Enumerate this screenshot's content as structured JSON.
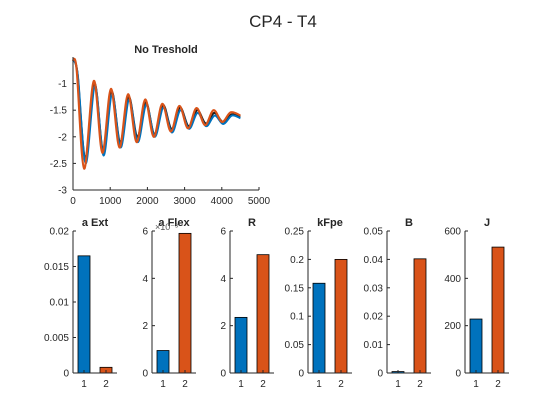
{
  "figure": {
    "title": "CP4 - T4",
    "colors": {
      "black": "#1a1a1a",
      "blue": "#0072bd",
      "orange": "#d95319",
      "axis": "#262626"
    }
  },
  "chart_data": [
    {
      "type": "line",
      "title": "No Treshold",
      "xlim": [
        0,
        5000
      ],
      "ylim": [
        -3,
        -0.5
      ],
      "xticks": [
        0,
        1000,
        2000,
        3000,
        4000,
        5000
      ],
      "yticks": [
        -3,
        -2.5,
        -2,
        -1.5,
        -1
      ],
      "xticklabels": [
        "0",
        "1000",
        "2000",
        "3000",
        "4000",
        "5000"
      ],
      "yticklabels": [
        "-3",
        "-2.5",
        "-2",
        "-1.5",
        "-1"
      ],
      "series": [
        {
          "color": "#1a1a1a",
          "x": [
            0,
            120,
            330,
            580,
            810,
            1040,
            1270,
            1500,
            1730,
            1960,
            2190,
            2420,
            2650,
            2880,
            3110,
            3340,
            3570,
            3800,
            4030,
            4260,
            4500
          ],
          "y": [
            -0.55,
            -0.8,
            -2.4,
            -1.0,
            -2.25,
            -1.15,
            -2.1,
            -1.25,
            -2.0,
            -1.35,
            -1.95,
            -1.4,
            -1.85,
            -1.45,
            -1.8,
            -1.5,
            -1.75,
            -1.55,
            -1.72,
            -1.58,
            -1.62
          ]
        },
        {
          "color": "#0072bd",
          "x": [
            0,
            130,
            340,
            590,
            820,
            1050,
            1280,
            1510,
            1740,
            1970,
            2200,
            2430,
            2660,
            2890,
            3120,
            3350,
            3580,
            3810,
            4040,
            4270,
            4500
          ],
          "y": [
            -0.55,
            -0.85,
            -2.5,
            -1.05,
            -2.35,
            -1.2,
            -2.2,
            -1.3,
            -2.1,
            -1.4,
            -2.0,
            -1.45,
            -1.92,
            -1.5,
            -1.85,
            -1.55,
            -1.8,
            -1.6,
            -1.76,
            -1.6,
            -1.65
          ]
        },
        {
          "color": "#d95319",
          "x": [
            0,
            100,
            300,
            560,
            790,
            1020,
            1250,
            1480,
            1710,
            1940,
            2170,
            2400,
            2630,
            2860,
            3090,
            3320,
            3550,
            3780,
            4010,
            4240,
            4500
          ],
          "y": [
            -0.55,
            -0.75,
            -2.6,
            -0.95,
            -2.3,
            -1.1,
            -2.2,
            -1.2,
            -2.1,
            -1.3,
            -2.0,
            -1.38,
            -1.9,
            -1.42,
            -1.84,
            -1.46,
            -1.78,
            -1.5,
            -1.72,
            -1.54,
            -1.6
          ]
        }
      ]
    },
    {
      "type": "bar",
      "title": "a Ext",
      "categories": [
        "1",
        "2"
      ],
      "values": [
        0.0165,
        0.0008
      ],
      "ylim": [
        0,
        0.02
      ],
      "yticks": [
        0,
        0.005,
        0.01,
        0.015,
        0.02
      ],
      "yticklabels": [
        "0",
        "0.005",
        "0.01",
        "0.015",
        "0.02"
      ],
      "colors": [
        "#0072bd",
        "#d95319"
      ]
    },
    {
      "type": "bar",
      "title": "a Flex",
      "exponent": "×10⁻³",
      "categories": [
        "1",
        "2"
      ],
      "values": [
        0.00095,
        0.0059
      ],
      "ylim": [
        0,
        0.006
      ],
      "yticks": [
        0,
        0.002,
        0.004,
        0.006
      ],
      "yticklabels": [
        "0",
        "2",
        "4",
        "6"
      ],
      "colors": [
        "#0072bd",
        "#d95319"
      ]
    },
    {
      "type": "bar",
      "title": "R",
      "categories": [
        "1",
        "2"
      ],
      "values": [
        2.35,
        5.0
      ],
      "ylim": [
        0,
        6
      ],
      "yticks": [
        0,
        2,
        4,
        6
      ],
      "yticklabels": [
        "0",
        "2",
        "4",
        "6"
      ],
      "colors": [
        "#0072bd",
        "#d95319"
      ]
    },
    {
      "type": "bar",
      "title": "kFpe",
      "categories": [
        "1",
        "2"
      ],
      "values": [
        0.158,
        0.2
      ],
      "ylim": [
        0,
        0.25
      ],
      "yticks": [
        0,
        0.05,
        0.1,
        0.15,
        0.2,
        0.25
      ],
      "yticklabels": [
        "0",
        "0.05",
        "0.1",
        "0.15",
        "0.2",
        "0.25"
      ],
      "colors": [
        "#0072bd",
        "#d95319"
      ]
    },
    {
      "type": "bar",
      "title": "B",
      "categories": [
        "1",
        "2"
      ],
      "values": [
        0.0005,
        0.0402
      ],
      "ylim": [
        0,
        0.05
      ],
      "yticks": [
        0,
        0.01,
        0.02,
        0.03,
        0.04,
        0.05
      ],
      "yticklabels": [
        "0",
        "0.01",
        "0.02",
        "0.03",
        "0.04",
        "0.05"
      ],
      "colors": [
        "#0072bd",
        "#d95319"
      ]
    },
    {
      "type": "bar",
      "title": "J",
      "categories": [
        "1",
        "2"
      ],
      "values": [
        228,
        532
      ],
      "ylim": [
        0,
        600
      ],
      "yticks": [
        0,
        200,
        400,
        600
      ],
      "yticklabels": [
        "0",
        "200",
        "400",
        "600"
      ],
      "colors": [
        "#0072bd",
        "#d95319"
      ]
    }
  ]
}
